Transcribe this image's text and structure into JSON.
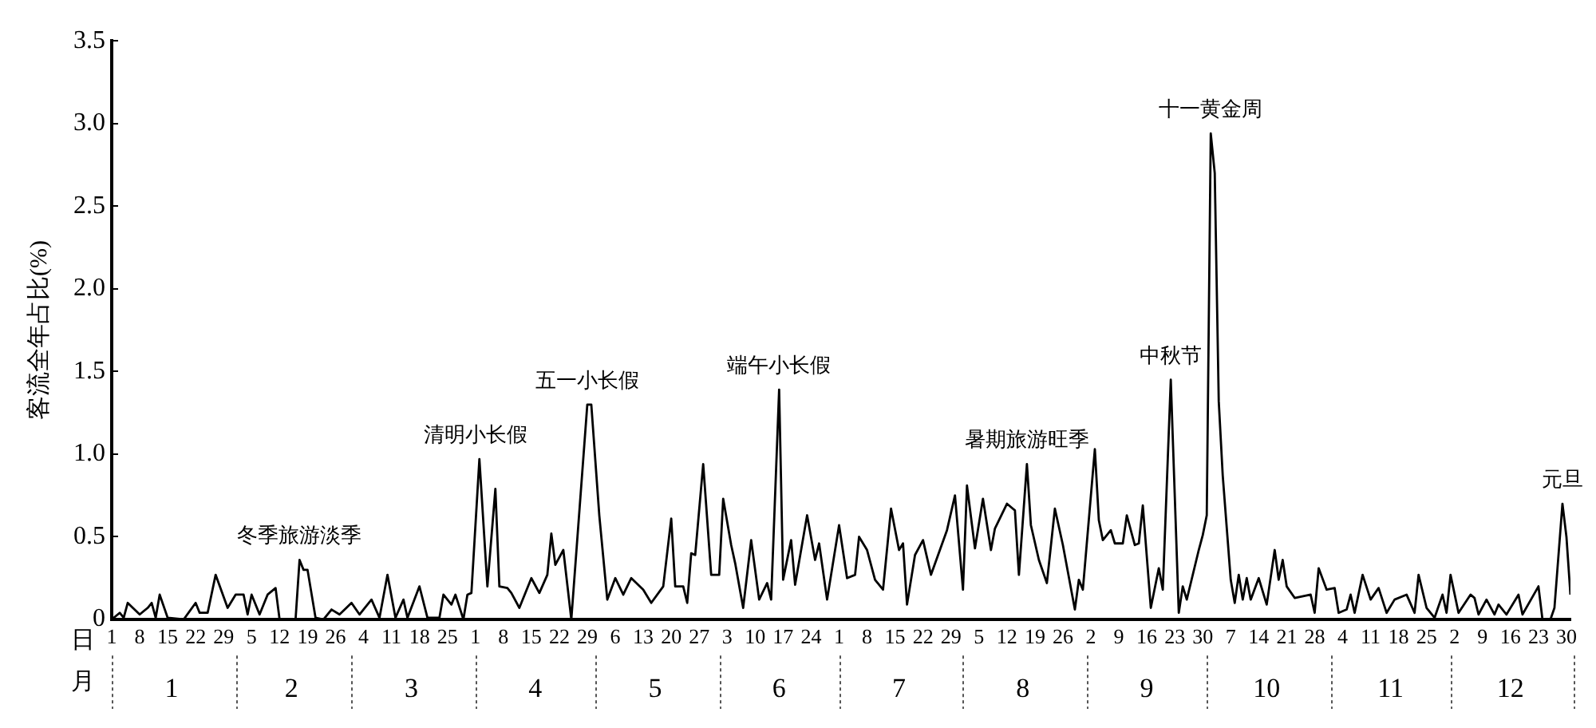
{
  "chart_data": {
    "type": "line",
    "ylabel": "客流全年占比(%)",
    "xlabel": "日",
    "x2label": "月",
    "grid": false,
    "legend": false,
    "marker": "none",
    "xlim": [
      "--01-01",
      "--12-31"
    ],
    "ylim": [
      0,
      3.5
    ],
    "yticks": [
      0,
      {
        "value": 0.5,
        "label": "0.5"
      },
      {
        "value": 1,
        "label": "1.0"
      },
      {
        "value": 1.5,
        "label": "1.5"
      },
      {
        "value": 2,
        "label": "2.0"
      },
      {
        "value": 2.5,
        "label": "2.5"
      },
      {
        "value": 3,
        "label": "3.0"
      },
      {
        "value": 3.5,
        "label": "3.5"
      }
    ],
    "xticks": [
      {
        "value": "--01-01",
        "label": "1"
      },
      {
        "value": "--01-08",
        "label": "8"
      },
      {
        "value": "--01-15",
        "label": "15"
      },
      {
        "value": "--01-22",
        "label": "22"
      },
      {
        "value": "--01-29",
        "label": "29"
      },
      {
        "value": "--02-05",
        "label": "5"
      },
      {
        "value": "--02-12",
        "label": "12"
      },
      {
        "value": "--02-19",
        "label": "19"
      },
      {
        "value": "--02-26",
        "label": "26"
      },
      {
        "value": "--03-04",
        "label": "4"
      },
      {
        "value": "--03-11",
        "label": "11"
      },
      {
        "value": "--03-18",
        "label": "18"
      },
      {
        "value": "--03-25",
        "label": "25"
      },
      {
        "value": "--04-01",
        "label": "1"
      },
      {
        "value": "--04-08",
        "label": "8"
      },
      {
        "value": "--04-15",
        "label": "15"
      },
      {
        "value": "--04-22",
        "label": "22"
      },
      {
        "value": "--04-29",
        "label": "29"
      },
      {
        "value": "--05-06",
        "label": "6"
      },
      {
        "value": "--05-13",
        "label": "13"
      },
      {
        "value": "--05-20",
        "label": "20"
      },
      {
        "value": "--05-27",
        "label": "27"
      },
      {
        "value": "--06-03",
        "label": "3"
      },
      {
        "value": "--06-10",
        "label": "10"
      },
      {
        "value": "--06-17",
        "label": "17"
      },
      {
        "value": "--06-24",
        "label": "24"
      },
      {
        "value": "--07-01",
        "label": "1"
      },
      {
        "value": "--07-08",
        "label": "8"
      },
      {
        "value": "--07-15",
        "label": "15"
      },
      {
        "value": "--07-22",
        "label": "22"
      },
      {
        "value": "--07-29",
        "label": "29"
      },
      {
        "value": "--08-05",
        "label": "5"
      },
      {
        "value": "--08-12",
        "label": "12"
      },
      {
        "value": "--08-19",
        "label": "19"
      },
      {
        "value": "--08-26",
        "label": "26"
      },
      {
        "value": "--09-02",
        "label": "2"
      },
      {
        "value": "--09-09",
        "label": "9"
      },
      {
        "value": "--09-16",
        "label": "16"
      },
      {
        "value": "--09-23",
        "label": "23"
      },
      {
        "value": "--09-30",
        "label": "30"
      },
      {
        "value": "--10-07",
        "label": "7"
      },
      {
        "value": "--10-14",
        "label": "14"
      },
      {
        "value": "--10-21",
        "label": "21"
      },
      {
        "value": "--10-28",
        "label": "28"
      },
      {
        "value": "--11-04",
        "label": "4"
      },
      {
        "value": "--11-11",
        "label": "11"
      },
      {
        "value": "--11-18",
        "label": "18"
      },
      {
        "value": "--11-25",
        "label": "25"
      },
      {
        "value": "--12-02",
        "label": "2"
      },
      {
        "value": "--12-09",
        "label": "9"
      },
      {
        "value": "--12-16",
        "label": "16"
      },
      {
        "value": "--12-23",
        "label": "23"
      },
      {
        "value": "--12-30",
        "label": "30"
      }
    ],
    "x2lim": [
      "--01-01",
      "--12-31"
    ],
    "x2ticks": [
      {
        "value": "--01-16",
        "label": "1"
      },
      {
        "value": "--02-15",
        "label": "2"
      },
      {
        "value": "--03-16",
        "label": "3"
      },
      {
        "value": "--04-16",
        "label": "4"
      },
      {
        "value": "--05-16",
        "label": "5"
      },
      {
        "value": "--06-16",
        "label": "6"
      },
      {
        "value": "--07-16",
        "label": "7"
      },
      {
        "value": "--08-16",
        "label": "8"
      },
      {
        "value": "--09-16",
        "label": "9"
      },
      {
        "value": "--10-16",
        "label": "10"
      },
      {
        "value": "--11-16",
        "label": "11"
      },
      {
        "value": "--12-16",
        "label": "12"
      }
    ],
    "annotations": [
      {
        "text": "冬季旅游淡季",
        "x": "--02-17",
        "y": 0.36
      },
      {
        "text": "清明小长假",
        "x": "--04-01",
        "y": 0.97
      },
      {
        "text": "五一小长假",
        "x": "--04-29",
        "y": 1.3
      },
      {
        "text": "端午小长假",
        "x": "--06-16",
        "y": 1.39
      },
      {
        "text": "暑期旅游旺季",
        "x": "--08-17",
        "y": 0.94
      },
      {
        "text": "中秋节",
        "x": "--09-22",
        "y": 1.45
      },
      {
        "text": "十一黄金周",
        "x": "--10-02",
        "y": 2.94
      },
      {
        "text": "元旦",
        "x": "--12-29",
        "y": 0.7
      }
    ],
    "x": [
      "--01-01",
      "--01-03",
      "--01-04",
      "--01-05",
      "--01-08",
      "--01-10",
      "--01-11",
      "--01-12",
      "--01-13",
      "--01-15",
      "--01-19",
      "--01-22",
      "--01-23",
      "--01-25",
      "--01-27",
      "--01-30",
      "--02-01",
      "--02-03",
      "--02-04",
      "--02-05",
      "--02-07",
      "--02-09",
      "--02-11",
      "--02-12",
      "--02-16",
      "--02-17",
      "--02-18",
      "--02-19",
      "--02-21",
      "--02-23",
      "--02-25",
      "--02-27",
      "--03-01",
      "--03-03",
      "--03-06",
      "--03-08",
      "--03-10",
      "--03-12",
      "--03-14",
      "--03-15",
      "--03-18",
      "--03-20",
      "--03-23",
      "--03-24",
      "--03-26",
      "--03-27",
      "--03-29",
      "--03-30",
      "--03-31",
      "--04-02",
      "--04-04",
      "--04-06",
      "--04-07",
      "--04-09",
      "--04-10",
      "--04-12",
      "--04-15",
      "--04-17",
      "--04-19",
      "--04-20",
      "--04-21",
      "--04-23",
      "--04-25",
      "--04-29",
      "--04-30",
      "--05-02",
      "--05-04",
      "--05-06",
      "--05-08",
      "--05-10",
      "--05-13",
      "--05-15",
      "--05-18",
      "--05-20",
      "--05-21",
      "--05-23",
      "--05-24",
      "--05-25",
      "--05-26",
      "--05-28",
      "--05-30",
      "--06-01",
      "--06-02",
      "--06-04",
      "--06-05",
      "--06-07",
      "--06-09",
      "--06-11",
      "--06-13",
      "--06-14",
      "--06-16",
      "--06-17",
      "--06-19",
      "--06-20",
      "--06-23",
      "--06-25",
      "--06-26",
      "--06-28",
      "--07-01",
      "--07-03",
      "--07-05",
      "--07-06",
      "--07-08",
      "--07-10",
      "--07-12",
      "--07-14",
      "--07-16",
      "--07-17",
      "--07-18",
      "--07-20",
      "--07-22",
      "--07-24",
      "--07-28",
      "--07-30",
      "--08-01",
      "--08-02",
      "--08-04",
      "--08-06",
      "--08-08",
      "--08-09",
      "--08-12",
      "--08-14",
      "--08-15",
      "--08-17",
      "--08-18",
      "--08-20",
      "--08-22",
      "--08-24",
      "--08-26",
      "--08-29",
      "--08-30",
      "--08-31",
      "--09-03",
      "--09-04",
      "--09-05",
      "--09-07",
      "--09-08",
      "--09-10",
      "--09-11",
      "--09-13",
      "--09-14",
      "--09-15",
      "--09-17",
      "--09-19",
      "--09-20",
      "--09-22",
      "--09-24",
      "--09-25",
      "--09-26",
      "--09-29",
      "--09-30",
      "--10-01",
      "--10-02",
      "--10-03",
      "--10-04",
      "--10-05",
      "--10-07",
      "--10-08",
      "--10-09",
      "--10-10",
      "--10-11",
      "--10-12",
      "--10-14",
      "--10-16",
      "--10-18",
      "--10-19",
      "--10-20",
      "--10-21",
      "--10-23",
      "--10-27",
      "--10-28",
      "--10-29",
      "--10-31",
      "--11-02",
      "--11-03",
      "--11-05",
      "--11-06",
      "--11-07",
      "--11-09",
      "--11-11",
      "--11-13",
      "--11-15",
      "--11-17",
      "--11-20",
      "--11-22",
      "--11-23",
      "--11-25",
      "--11-27",
      "--11-29",
      "--11-30",
      "--12-01",
      "--12-03",
      "--12-06",
      "--12-07",
      "--12-08",
      "--12-10",
      "--12-12",
      "--12-13",
      "--12-15",
      "--12-18",
      "--12-19",
      "--12-23",
      "--12-24",
      "--12-26",
      "--12-27",
      "--12-29",
      "--12-30",
      "--12-31"
    ],
    "series": [
      {
        "color": "#000000",
        "values": [
          0,
          0.04,
          0.01,
          0.1,
          0.03,
          0.07,
          0.1,
          0.01,
          0.15,
          0.01,
          0,
          0.1,
          0.04,
          0.04,
          0.27,
          0.07,
          0.15,
          0.15,
          0.03,
          0.15,
          0.03,
          0.15,
          0.19,
          0,
          0,
          0.36,
          0.3,
          0.3,
          0.01,
          0,
          0.06,
          0.03,
          0.1,
          0.03,
          0.12,
          0.01,
          0.27,
          0.01,
          0.12,
          0.01,
          0.2,
          0.01,
          0.01,
          0.15,
          0.09,
          0.15,
          0,
          0.15,
          0.16,
          0.97,
          0.2,
          0.79,
          0.2,
          0.19,
          0.16,
          0.07,
          0.25,
          0.16,
          0.27,
          0.52,
          0.33,
          0.42,
          0,
          1.3,
          1.3,
          0.63,
          0.12,
          0.25,
          0.15,
          0.25,
          0.18,
          0.1,
          0.2,
          0.61,
          0.2,
          0.2,
          0.1,
          0.4,
          0.39,
          0.94,
          0.27,
          0.27,
          0.73,
          0.45,
          0.34,
          0.07,
          0.48,
          0.12,
          0.22,
          0.12,
          1.39,
          0.24,
          0.48,
          0.21,
          0.63,
          0.36,
          0.46,
          0.12,
          0.57,
          0.25,
          0.27,
          0.5,
          0.42,
          0.24,
          0.18,
          0.67,
          0.42,
          0.46,
          0.09,
          0.39,
          0.48,
          0.27,
          0.54,
          0.75,
          0.18,
          0.81,
          0.43,
          0.73,
          0.42,
          0.55,
          0.7,
          0.66,
          0.27,
          0.94,
          0.57,
          0.36,
          0.22,
          0.67,
          0.45,
          0.06,
          0.24,
          0.18,
          1.03,
          0.6,
          0.48,
          0.54,
          0.46,
          0.46,
          0.63,
          0.45,
          0.46,
          0.69,
          0.07,
          0.31,
          0.18,
          1.45,
          0.04,
          0.2,
          0.12,
          0.42,
          0.51,
          0.63,
          2.94,
          2.7,
          1.32,
          0.87,
          0.24,
          0.1,
          0.27,
          0.12,
          0.25,
          0.12,
          0.25,
          0.09,
          0.42,
          0.24,
          0.36,
          0.2,
          0.13,
          0.15,
          0.04,
          0.31,
          0.18,
          0.19,
          0.04,
          0.06,
          0.15,
          0.04,
          0.27,
          0.12,
          0.19,
          0.04,
          0.12,
          0.15,
          0.04,
          0.27,
          0.07,
          0.01,
          0.15,
          0.04,
          0.27,
          0.04,
          0.15,
          0.13,
          0.03,
          0.12,
          0.03,
          0.09,
          0.03,
          0.15,
          0.03,
          0.2,
          0,
          0,
          0.07,
          0.7,
          0.5,
          0.15
        ]
      }
    ]
  }
}
